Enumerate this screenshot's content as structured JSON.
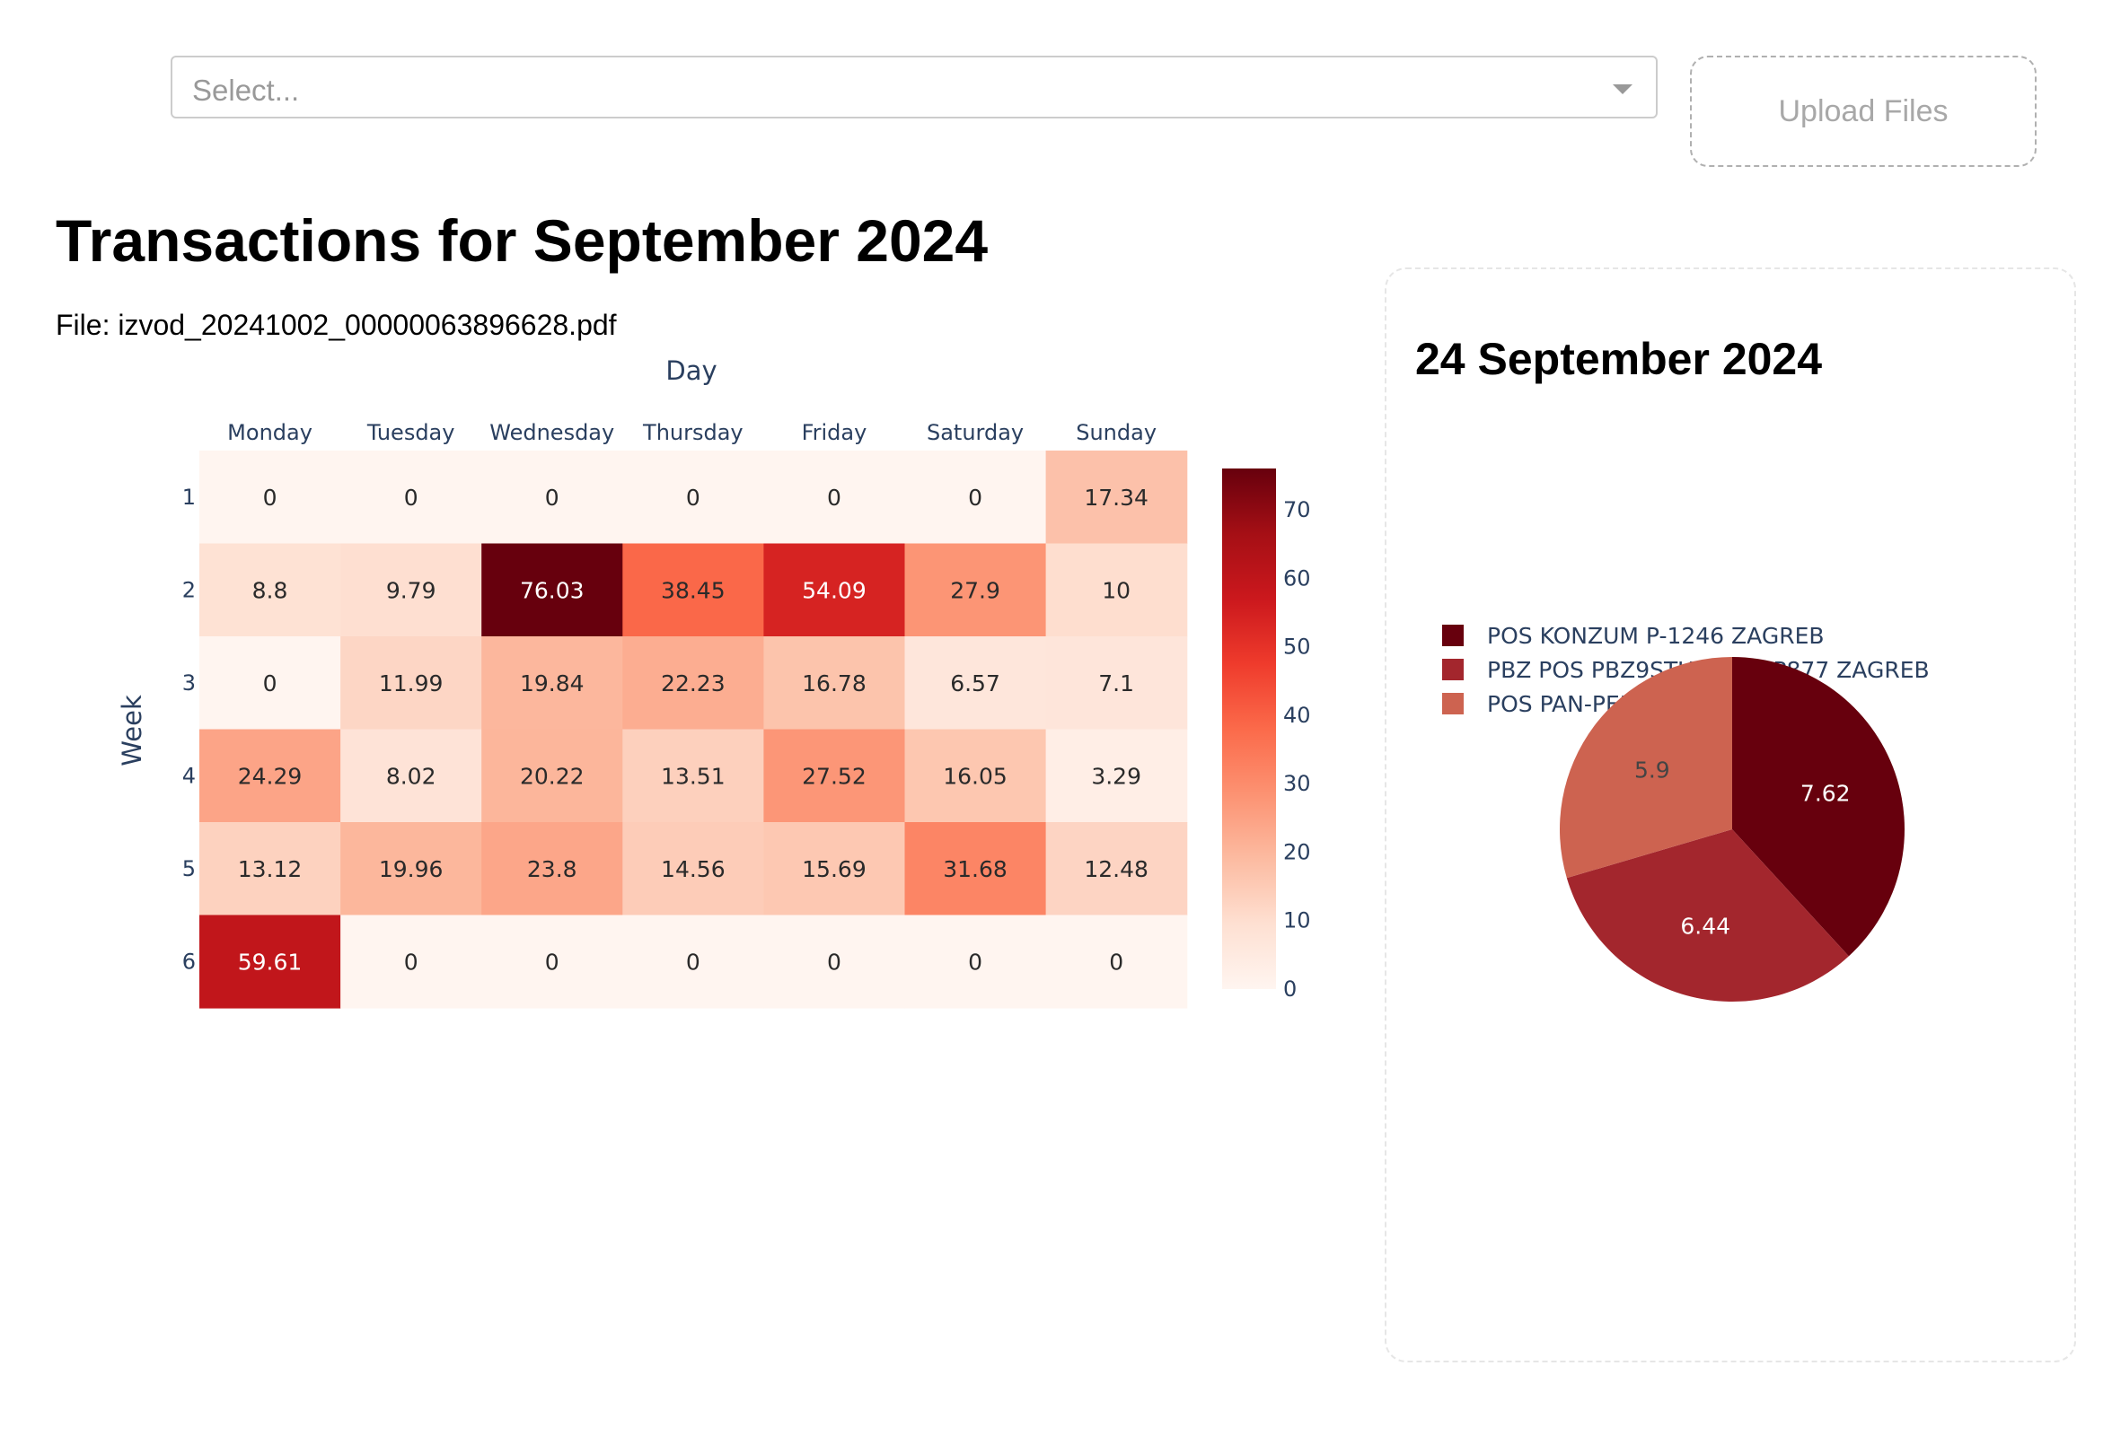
{
  "controls": {
    "select_placeholder": "Select...",
    "upload_label": "Upload Files"
  },
  "page": {
    "title": "Transactions for September 2024",
    "file_prefix": "File: ",
    "file_name": "izvod_20241002_00000063896628.pdf"
  },
  "detail": {
    "title": "24 September 2024"
  },
  "colors": {
    "scale": [
      "#fff5f0",
      "#fee0d2",
      "#fcbba1",
      "#fc9272",
      "#fb6a4a",
      "#ef3b2c",
      "#cb181d",
      "#a50f15",
      "#67000d"
    ],
    "pie": [
      "#67000d",
      "#a3262d",
      "#cd6350"
    ],
    "axis_text": "#2a3f5f"
  },
  "chart_data": [
    {
      "type": "heatmap",
      "xlabel": "Day",
      "ylabel": "Week",
      "x": [
        "Monday",
        "Tuesday",
        "Wednesday",
        "Thursday",
        "Friday",
        "Saturday",
        "Sunday"
      ],
      "y": [
        "1",
        "2",
        "3",
        "4",
        "5",
        "6"
      ],
      "z": [
        [
          0,
          0,
          0,
          0,
          0,
          0,
          17.34
        ],
        [
          8.8,
          9.79,
          76.03,
          38.45,
          54.09,
          27.9,
          10
        ],
        [
          0,
          11.99,
          19.84,
          22.23,
          16.78,
          6.57,
          7.1
        ],
        [
          24.29,
          8.02,
          20.22,
          13.51,
          27.52,
          16.05,
          3.29
        ],
        [
          13.12,
          19.96,
          23.8,
          14.56,
          15.69,
          31.68,
          12.48
        ],
        [
          59.61,
          0,
          0,
          0,
          0,
          0,
          0
        ]
      ],
      "zmin": 0,
      "zmax": 76.03,
      "colorbar_ticks": [
        0,
        10,
        20,
        30,
        40,
        50,
        60,
        70
      ],
      "colorscale": "Reds"
    },
    {
      "type": "pie",
      "labels": [
        "POS KONZUM P-1246 ZAGREB",
        "PBZ POS PBZ9STUDENACP877 ZAGREB",
        "POS PAN-PEK P018 ZAGREB"
      ],
      "values": [
        7.62,
        6.44,
        5.9
      ],
      "legend": "top-left"
    }
  ]
}
